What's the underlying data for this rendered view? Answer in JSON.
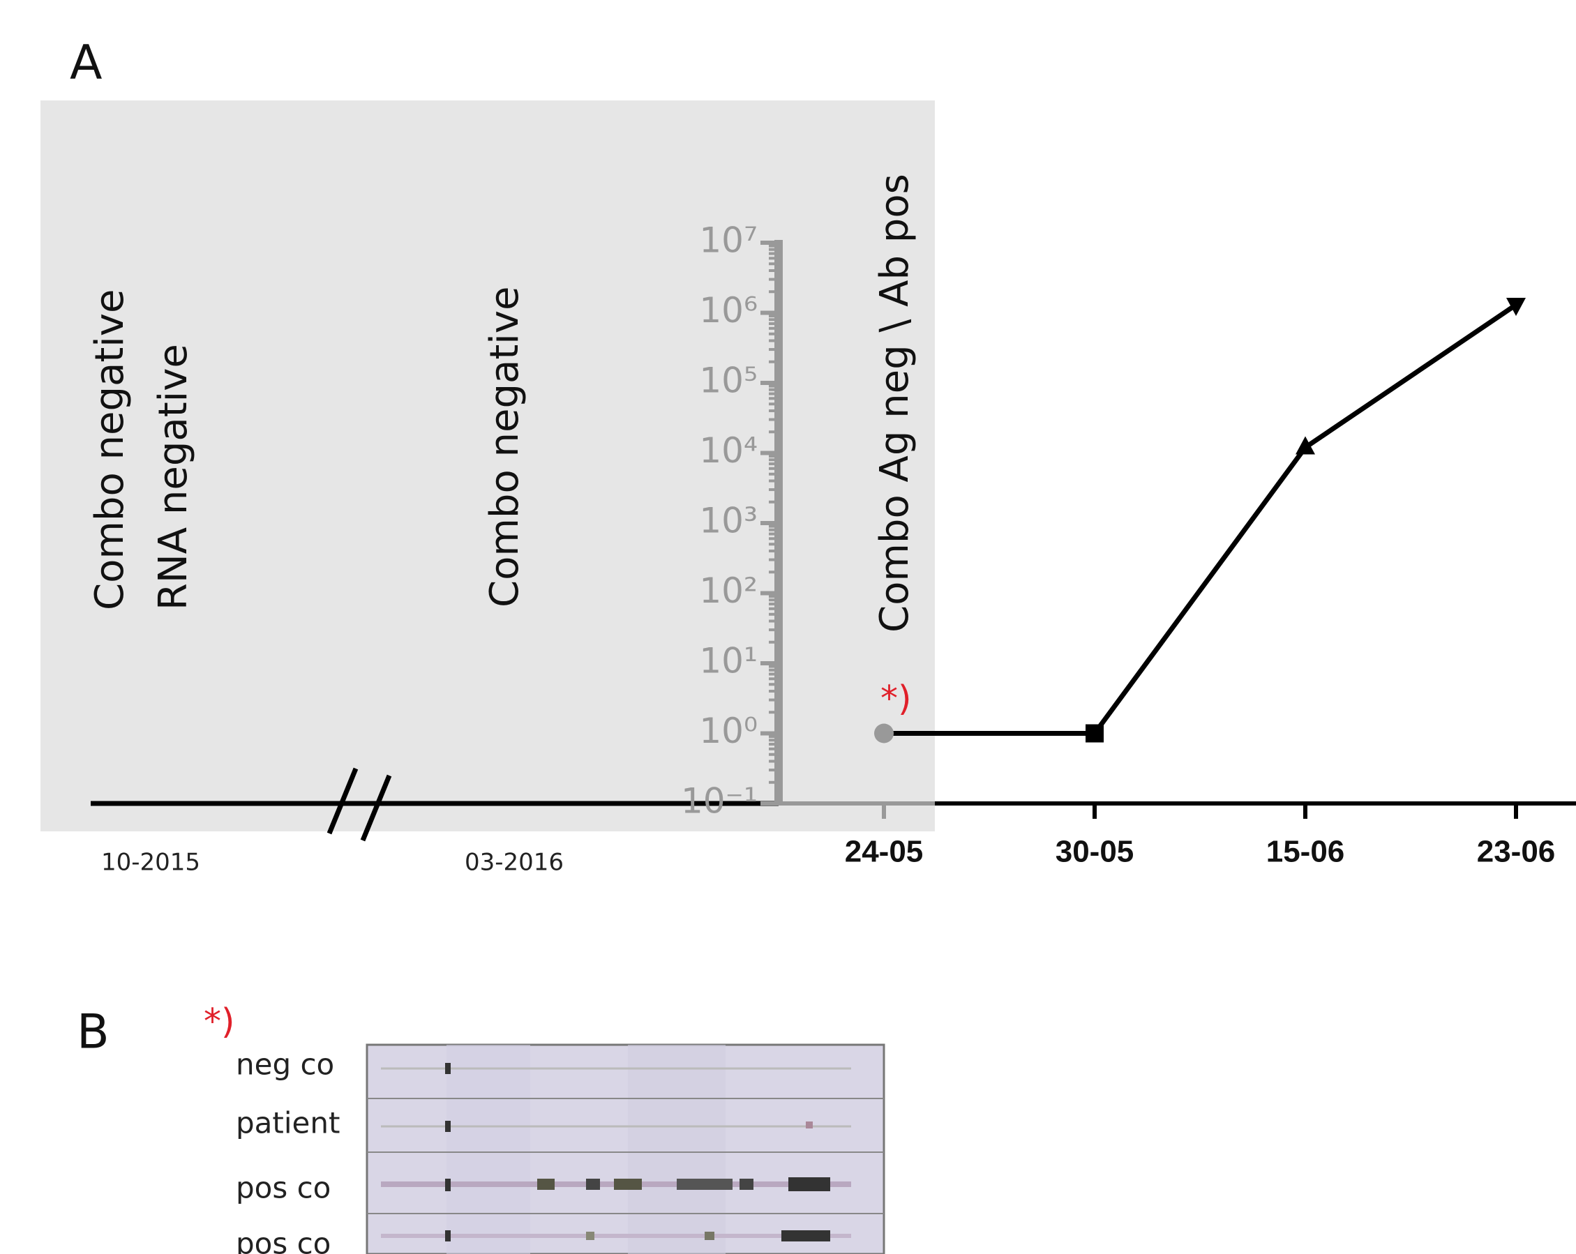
{
  "panel_labels": [
    "A",
    "B"
  ],
  "chart_data": {
    "type": "line",
    "x": [
      "24-05",
      "30-05",
      "15-06",
      "23-06"
    ],
    "series": [
      {
        "values": [
          1,
          1,
          12000,
          1300000
        ],
        "color": "#000000",
        "markers": [
          "circle",
          "square",
          "triangle-up",
          "triangle-down"
        ],
        "marker_colors": [
          "#999999",
          "#000000",
          "#000000",
          "#000000"
        ]
      }
    ],
    "log_scale": true,
    "ylim": [
      0.1,
      10000000
    ],
    "yticks": [
      {
        "value": 0.1,
        "label": "10⁻¹"
      },
      {
        "value": 1,
        "label": "10⁰"
      },
      {
        "value": 10,
        "label": "10¹"
      },
      {
        "value": 100,
        "label": "10²"
      },
      {
        "value": 1000,
        "label": "10³"
      },
      {
        "value": 10000,
        "label": "10⁴"
      },
      {
        "value": 100000,
        "label": "10⁵"
      },
      {
        "value": 1000000,
        "label": "10⁶"
      },
      {
        "value": 10000000,
        "label": "10⁷"
      }
    ],
    "axis_color": "#999999",
    "earlier_dates": [
      "10-2015",
      "03-2016"
    ],
    "annotations": [
      "Combo negative",
      "RNA negative",
      "Combo negative",
      "Combo Ag neg \\ Ab pos",
      "*)"
    ]
  },
  "blot": {
    "marker": "*)",
    "rows": [
      "neg co",
      "patient",
      "pos co",
      "pos co"
    ]
  }
}
